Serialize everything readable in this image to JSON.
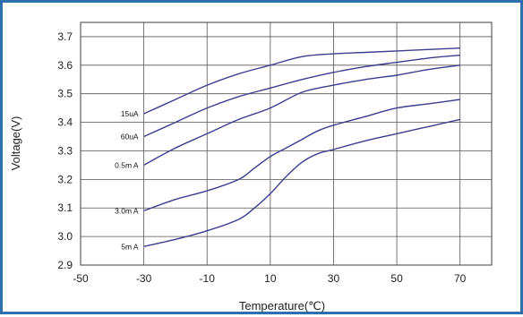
{
  "chart_data": {
    "type": "line",
    "title": "",
    "xlabel": "Temperature(℃)",
    "ylabel": "Voltage(V)",
    "xlim": [
      -50,
      80
    ],
    "ylim": [
      2.9,
      3.75
    ],
    "grid": true,
    "x_ticks": [
      "-50",
      "-30",
      "-10",
      "10",
      "30",
      "50",
      "70"
    ],
    "y_ticks": [
      "2.9",
      "3.0",
      "3.1",
      "3.2",
      "3.3",
      "3.4",
      "3.5",
      "3.6",
      "3.7"
    ],
    "line_color": "#3b3d8f",
    "series": [
      {
        "name": "15uA",
        "x": [
          -30,
          -20,
          -10,
          0,
          10,
          20,
          30,
          40,
          50,
          60,
          70
        ],
        "values": [
          3.43,
          3.48,
          3.53,
          3.57,
          3.6,
          3.63,
          3.64,
          3.645,
          3.65,
          3.655,
          3.66
        ]
      },
      {
        "name": "60uA",
        "x": [
          -30,
          -20,
          -10,
          0,
          10,
          20,
          30,
          40,
          50,
          60,
          70
        ],
        "values": [
          3.35,
          3.4,
          3.45,
          3.49,
          3.52,
          3.55,
          3.575,
          3.595,
          3.61,
          3.625,
          3.635
        ]
      },
      {
        "name": "0.5m A",
        "x": [
          -30,
          -20,
          -10,
          0,
          10,
          20,
          30,
          40,
          50,
          60,
          70
        ],
        "values": [
          3.25,
          3.31,
          3.36,
          3.41,
          3.45,
          3.505,
          3.53,
          3.55,
          3.565,
          3.585,
          3.6
        ]
      },
      {
        "name": "3.0m A",
        "x": [
          -30,
          -20,
          -10,
          0,
          5,
          10,
          15,
          20,
          25,
          30,
          40,
          50,
          60,
          70
        ],
        "values": [
          3.09,
          3.13,
          3.16,
          3.2,
          3.24,
          3.28,
          3.31,
          3.34,
          3.37,
          3.39,
          3.42,
          3.45,
          3.465,
          3.48
        ]
      },
      {
        "name": "5m A",
        "x": [
          -30,
          -20,
          -10,
          0,
          5,
          10,
          15,
          20,
          25,
          30,
          40,
          50,
          60,
          70
        ],
        "values": [
          2.965,
          2.99,
          3.02,
          3.06,
          3.1,
          3.15,
          3.21,
          3.26,
          3.29,
          3.305,
          3.335,
          3.36,
          3.385,
          3.41
        ]
      }
    ]
  }
}
